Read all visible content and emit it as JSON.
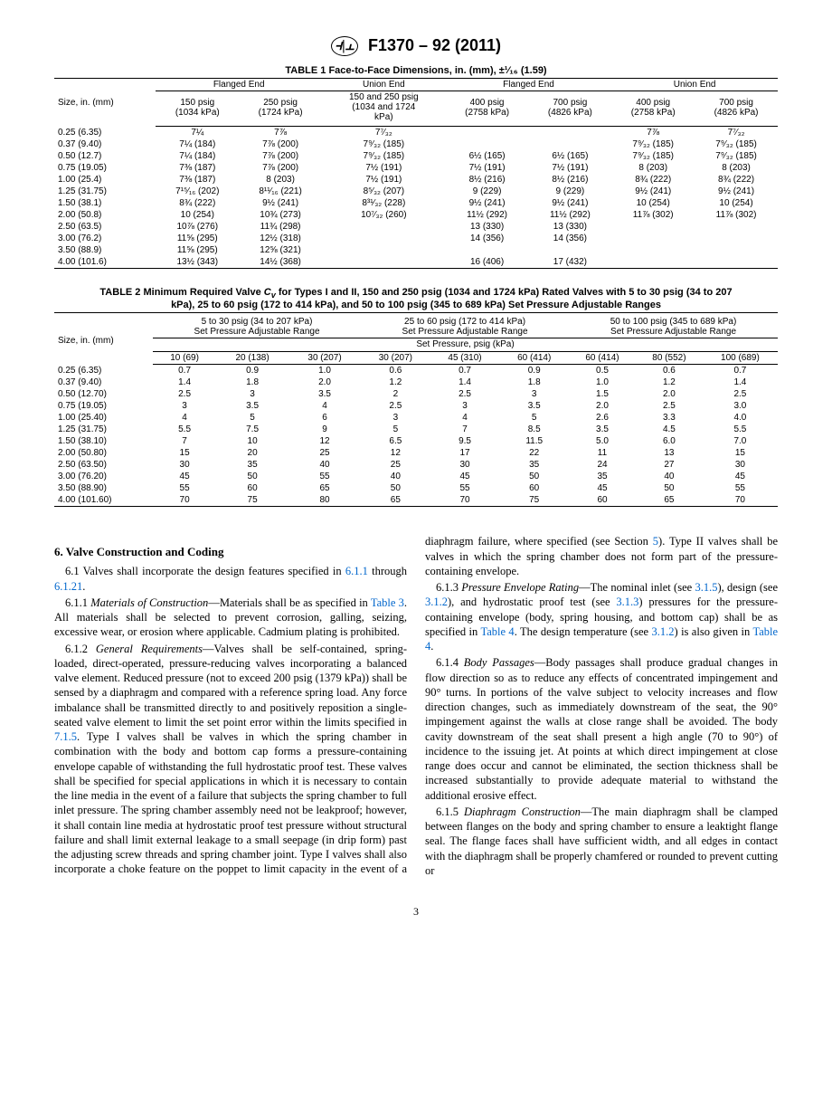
{
  "header": {
    "standard": "F1370 – 92 (2011)"
  },
  "table1": {
    "title": "TABLE 1 Face-to-Face Dimensions, in. (mm), ±¹⁄₁₆ (1.59)",
    "group_headers": [
      "Flanged End",
      "Union End",
      "Flanged End",
      "Union End"
    ],
    "size_label": "Size, in. (mm)",
    "sub_headers": [
      "150 psig\n(1034 kPa)",
      "250 psig\n(1724 kPa)",
      "150 and 250 psig\n(1034 and 1724\nkPa)",
      "400 psig\n(2758 kPa)",
      "700 psig\n(4826 kPa)",
      "400 psig\n(2758 kPa)",
      "700 psig\n(4826 kPa)"
    ],
    "rows": [
      [
        "0.25 (6.35)",
        "7¼",
        "7⅞",
        "7⁷⁄₃₂",
        "",
        "",
        "7⅞",
        "7⁷⁄₃₂"
      ],
      [
        "0.37 (9.40)",
        "7¼ (184)",
        "7⅞ (200)",
        "7⁹⁄₃₂ (185)",
        "",
        "",
        "7⁹⁄₃₂ (185)",
        "7⁹⁄₃₂ (185)"
      ],
      [
        "0.50 (12.7)",
        "7¼ (184)",
        "7⅞ (200)",
        "7⁹⁄₃₂ (185)",
        "6½ (165)",
        "6½ (165)",
        "7⁹⁄₃₂ (185)",
        "7⁹⁄₃₂ (185)"
      ],
      [
        "0.75 (19.05)",
        "7⅜ (187)",
        "7⅞ (200)",
        "7½ (191)",
        "7½ (191)",
        "7½ (191)",
        "8 (203)",
        "8 (203)"
      ],
      [
        "1.00 (25.4)",
        "7⅜ (187)",
        "8 (203)",
        "7½ (191)",
        "8½ (216)",
        "8½ (216)",
        "8¾ (222)",
        "8¾ (222)"
      ],
      [
        "1.25 (31.75)",
        "7¹⁵⁄₁₆ (202)",
        "8¹¹⁄₁₆ (221)",
        "8⁵⁄₃₂ (207)",
        "9 (229)",
        "9 (229)",
        "9½ (241)",
        "9½ (241)"
      ],
      [
        "1.50 (38.1)",
        "8¾ (222)",
        "9½ (241)",
        "8³¹⁄₃₂ (228)",
        "9½ (241)",
        "9½ (241)",
        "10 (254)",
        "10 (254)"
      ],
      [
        "2.00 (50.8)",
        "10 (254)",
        "10¾ (273)",
        "10⁷⁄₃₂ (260)",
        "11½ (292)",
        "11½ (292)",
        "11⅞ (302)",
        "11⅞ (302)"
      ],
      [
        "2.50 (63.5)",
        "10⅞ (276)",
        "11¾ (298)",
        "",
        "13 (330)",
        "13 (330)",
        "",
        ""
      ],
      [
        "3.00 (76.2)",
        "11⅝ (295)",
        "12½ (318)",
        "",
        "14 (356)",
        "14 (356)",
        "",
        ""
      ],
      [
        "3.50 (88.9)",
        "11⅝ (295)",
        "12⅝ (321)",
        "",
        "",
        "",
        "",
        ""
      ],
      [
        "4.00 (101.6)",
        "13½ (343)",
        "14½ (368)",
        "",
        "16 (406)",
        "17 (432)",
        "",
        ""
      ]
    ]
  },
  "table2": {
    "title": "TABLE 2 Minimum Required Valve Cᵥ for Types I and II, 150 and 250 psig (1034 and 1724 kPa) Rated Valves with 5 to 30 psig (34 to 207 kPa), 25 to 60 psig (172 to 414 kPa), and 50 to 100 psig (345 to 689 kPa) Set Pressure Adjustable Ranges",
    "size_label": "Size, in. (mm)",
    "range_headers": [
      "5 to 30 psig (34 to 207 kPa)\nSet Pressure Adjustable Range",
      "25 to 60 psig (172 to 414 kPa)\nSet Pressure Adjustable Range",
      "50 to 100 psig (345 to 689 kPa)\nSet Pressure Adjustable Range"
    ],
    "setpress_label": "Set Pressure, psig (kPa)",
    "col_headers": [
      "10 (69)",
      "20 (138)",
      "30 (207)",
      "30 (207)",
      "45 (310)",
      "60 (414)",
      "60 (414)",
      "80 (552)",
      "100 (689)"
    ],
    "rows": [
      [
        "0.25 (6.35)",
        "0.7",
        "0.9",
        "1.0",
        "0.6",
        "0.7",
        "0.9",
        "0.5",
        "0.6",
        "0.7"
      ],
      [
        "0.37 (9.40)",
        "1.4",
        "1.8",
        "2.0",
        "1.2",
        "1.4",
        "1.8",
        "1.0",
        "1.2",
        "1.4"
      ],
      [
        "0.50 (12.70)",
        "2.5",
        "3",
        "3.5",
        "2",
        "2.5",
        "3",
        "1.5",
        "2.0",
        "2.5"
      ],
      [
        "0.75 (19.05)",
        "3",
        "3.5",
        "4",
        "2.5",
        "3",
        "3.5",
        "2.0",
        "2.5",
        "3.0"
      ],
      [
        "1.00 (25.40)",
        "4",
        "5",
        "6",
        "3",
        "4",
        "5",
        "2.6",
        "3.3",
        "4.0"
      ],
      [
        "1.25 (31.75)",
        "5.5",
        "7.5",
        "9",
        "5",
        "7",
        "8.5",
        "3.5",
        "4.5",
        "5.5"
      ],
      [
        "1.50 (38.10)",
        "7",
        "10",
        "12",
        "6.5",
        "9.5",
        "11.5",
        "5.0",
        "6.0",
        "7.0"
      ],
      [
        "2.00 (50.80)",
        "15",
        "20",
        "25",
        "12",
        "17",
        "22",
        "11",
        "13",
        "15"
      ],
      [
        "2.50 (63.50)",
        "30",
        "35",
        "40",
        "25",
        "30",
        "35",
        "24",
        "27",
        "30"
      ],
      [
        "3.00 (76.20)",
        "45",
        "50",
        "55",
        "40",
        "45",
        "50",
        "35",
        "40",
        "45"
      ],
      [
        "3.50 (88.90)",
        "55",
        "60",
        "65",
        "50",
        "55",
        "60",
        "45",
        "50",
        "55"
      ],
      [
        "4.00 (101.60)",
        "70",
        "75",
        "80",
        "65",
        "70",
        "75",
        "60",
        "65",
        "70"
      ]
    ]
  },
  "body": {
    "section_title": "6.  Valve Construction and Coding",
    "p1a": "6.1  Valves shall incorporate the design features specified in ",
    "p1b": "6.1.1",
    "p1c": " through ",
    "p1d": "6.1.21",
    "p1e": ".",
    "p2a": "6.1.1 ",
    "p2b": "Materials of Construction",
    "p2c": "—Materials shall be as specified in ",
    "p2d": "Table 3",
    "p2e": ". All materials shall be selected to prevent corrosion, galling, seizing, excessive wear, or erosion where applicable. Cadmium plating is prohibited.",
    "p3a": "6.1.2 ",
    "p3b": "General Requirements",
    "p3c": "—Valves shall be self-contained, spring-loaded, direct-operated, pressure-reducing valves incorporating a balanced valve element. Reduced pressure (not to exceed 200 psig (1379 kPa)) shall be sensed by a diaphragm and compared with a reference spring load. Any force imbalance shall be transmitted directly to and positively reposition a single-seated valve element to limit the set point error within the limits specified in ",
    "p3d": "7.1.5",
    "p3e": ". Type I valves shall be valves in which the spring chamber in combination with the body and bottom cap forms a pressure-containing envelope capable of withstanding the full hydrostatic proof test. These valves shall be specified for special applications in which it is necessary to contain the line media in the event of a failure that subjects the spring chamber to full inlet pressure. The spring chamber assembly need not be leakproof; however, it shall contain line media at hydrostatic proof test pressure without structural failure and shall limit external leakage to a small seepage (in drip form) past the adjusting screw threads and spring chamber joint. Type I valves shall also incorporate a choke feature on the poppet to limit capacity in the event of a diaphragm failure, where specified (see Section ",
    "p3f": "5",
    "p3g": "). Type II valves shall be valves in which the spring chamber does not form part of the pressure-containing envelope.",
    "p4a": "6.1.3 ",
    "p4b": "Pressure Envelope Rating",
    "p4c": "—The nominal inlet (see ",
    "p4d": "3.1.5",
    "p4e": "), design (see ",
    "p4f": "3.1.2",
    "p4g": "), and hydrostatic proof test (see ",
    "p4h": "3.1.3",
    "p4i": ") pressures for the pressure-containing envelope (body, spring housing, and bottom cap) shall be as specified in ",
    "p4j": "Table 4",
    "p4k": ". The design temperature (see ",
    "p4l": "3.1.2",
    "p4m": ") is also given in ",
    "p4n": "Table 4",
    "p4o": ".",
    "p5a": "6.1.4 ",
    "p5b": "Body Passages",
    "p5c": "—Body passages shall produce gradual changes in flow direction so as to reduce any effects of concentrated impingement and 90° turns. In portions of the valve subject to velocity increases and flow direction changes, such as immediately downstream of the seat, the 90° impingement against the walls at close range shall be avoided. The body cavity downstream of the seat shall present a high angle (70 to 90°) of incidence to the issuing jet. At points at which direct impingement at close range does occur and cannot be eliminated, the section thickness shall be increased substantially to provide adequate material to withstand the additional erosive effect.",
    "p6a": "6.1.5 ",
    "p6b": "Diaphragm Construction",
    "p6c": "—The main diaphragm shall be clamped between flanges on the body and spring chamber to ensure a leaktight flange seal. The flange faces shall have sufficient width, and all edges in contact with the diaphragm shall be properly chamfered or rounded to prevent cutting or"
  },
  "pagenum": "3"
}
